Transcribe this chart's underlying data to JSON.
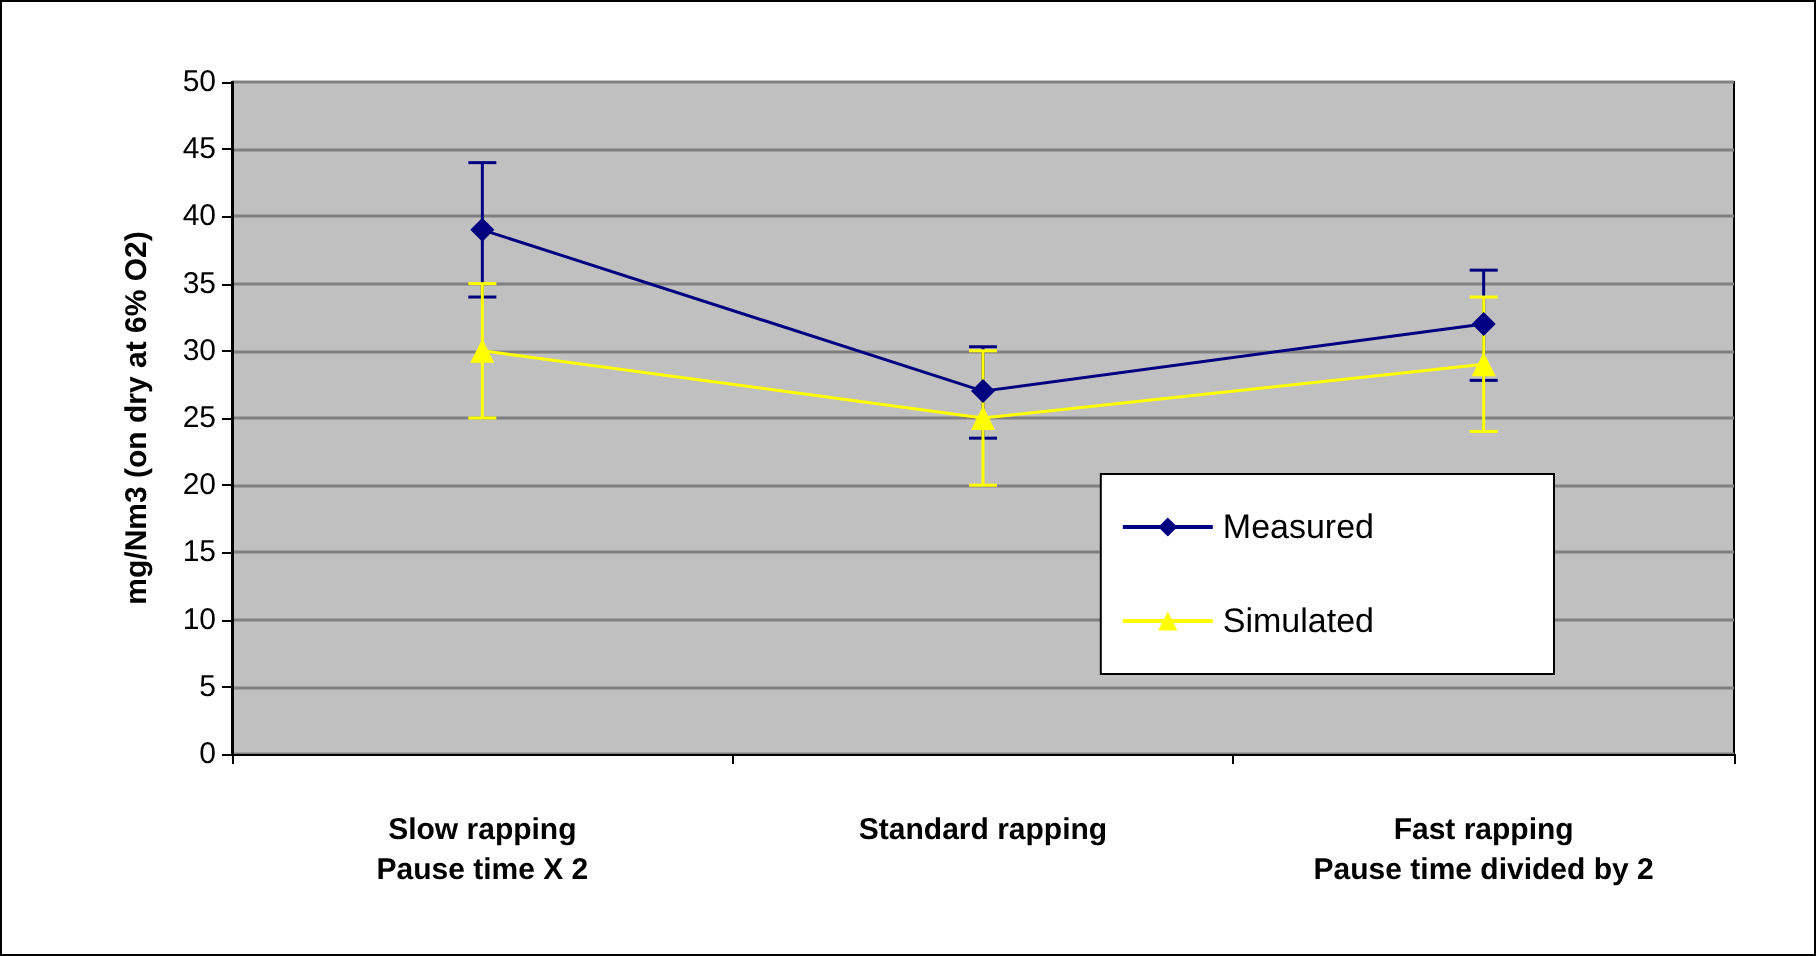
{
  "chart_data": {
    "type": "line",
    "ylabel": "mg/Nm3 (on dry at 6% O2)",
    "categories": [
      "Slow rapping\nPause time X 2",
      "Standard rapping",
      "Fast rapping\nPause time divided by 2"
    ],
    "series": [
      {
        "name": "Measured",
        "color": "#000080",
        "marker": "diamond",
        "values": [
          39,
          27,
          32
        ],
        "errors": [
          [
            34,
            44
          ],
          [
            23.5,
            30.3
          ],
          [
            27.8,
            36
          ]
        ]
      },
      {
        "name": "Simulated",
        "color": "#ffff00",
        "marker": "triangle",
        "values": [
          30,
          25,
          29
        ],
        "errors": [
          5,
          5,
          5
        ]
      }
    ],
    "ylim": [
      0,
      50
    ],
    "yticks": [
      0,
      5,
      10,
      15,
      20,
      25,
      30,
      35,
      40,
      45,
      50
    ],
    "grid": "y",
    "legend": "bottom right",
    "line_style": "solid"
  }
}
